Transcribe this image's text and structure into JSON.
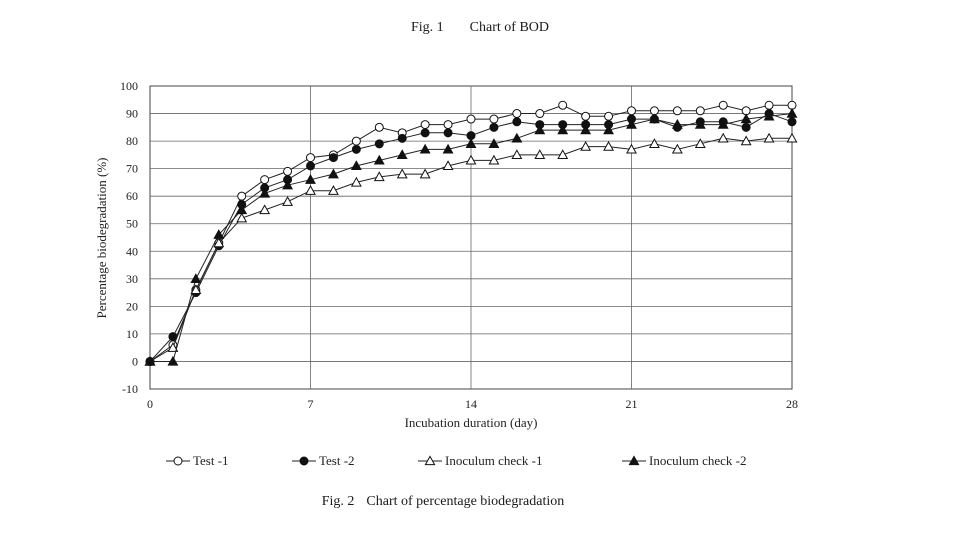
{
  "figure_top": {
    "number": "Fig. 1",
    "caption": "Chart of BOD"
  },
  "figure_bottom": {
    "number": "Fig. 2",
    "caption": "Chart of percentage biodegradation"
  },
  "chart_data": {
    "type": "line",
    "title": "Chart of percentage biodegradation",
    "xlabel": "Incubation duration (day)",
    "ylabel": "Percentage biodegradation (%)",
    "xlim": [
      0,
      28
    ],
    "ylim": [
      -10,
      100
    ],
    "xticks": [
      0,
      7,
      14,
      21,
      28
    ],
    "yticks": [
      -10,
      0,
      10,
      20,
      30,
      40,
      50,
      60,
      70,
      80,
      90,
      100
    ],
    "grid": true,
    "legend_position": "bottom",
    "series": [
      {
        "name": "Test -1",
        "marker": "circle-open",
        "x": [
          0,
          1,
          2,
          3,
          4,
          5,
          6,
          7,
          8,
          9,
          10,
          11,
          12,
          13,
          14,
          15,
          16,
          17,
          18,
          19,
          20,
          21,
          22,
          23,
          24,
          25,
          26,
          27,
          28
        ],
        "y": [
          0,
          6,
          26,
          43,
          60,
          66,
          69,
          74,
          75,
          80,
          85,
          83,
          86,
          86,
          88,
          88,
          90,
          90,
          93,
          89,
          89,
          91,
          91,
          91,
          91,
          93,
          91,
          93,
          93
        ]
      },
      {
        "name": "Test -2",
        "marker": "circle-filled",
        "x": [
          0,
          1,
          2,
          3,
          4,
          5,
          6,
          7,
          8,
          9,
          10,
          11,
          12,
          13,
          14,
          15,
          16,
          17,
          18,
          19,
          20,
          21,
          22,
          23,
          24,
          25,
          26,
          27,
          28
        ],
        "y": [
          0,
          9,
          25,
          42,
          57,
          63,
          66,
          71,
          74,
          77,
          79,
          81,
          83,
          83,
          82,
          85,
          87,
          86,
          86,
          86,
          86,
          88,
          88,
          85,
          87,
          87,
          85,
          90,
          87
        ]
      },
      {
        "name": "Inoculum check -1",
        "marker": "triangle-open",
        "x": [
          0,
          1,
          2,
          3,
          4,
          5,
          6,
          7,
          8,
          9,
          10,
          11,
          12,
          13,
          14,
          15,
          16,
          17,
          18,
          19,
          20,
          21,
          22,
          23,
          24,
          25,
          26,
          27,
          28
        ],
        "y": [
          0,
          5,
          26,
          43,
          52,
          55,
          58,
          62,
          62,
          65,
          67,
          68,
          68,
          71,
          73,
          73,
          75,
          75,
          75,
          78,
          78,
          77,
          79,
          77,
          79,
          81,
          80,
          81,
          81
        ]
      },
      {
        "name": "Inoculum check -2",
        "marker": "triangle-filled",
        "x": [
          0,
          1,
          2,
          3,
          4,
          5,
          6,
          7,
          8,
          9,
          10,
          11,
          12,
          13,
          14,
          15,
          16,
          17,
          18,
          19,
          20,
          21,
          22,
          23,
          24,
          25,
          26,
          27,
          28
        ],
        "y": [
          0,
          0,
          30,
          46,
          55,
          61,
          64,
          66,
          68,
          71,
          73,
          75,
          77,
          77,
          79,
          79,
          81,
          84,
          84,
          84,
          84,
          86,
          88,
          86,
          86,
          86,
          88,
          89,
          90
        ]
      }
    ]
  }
}
